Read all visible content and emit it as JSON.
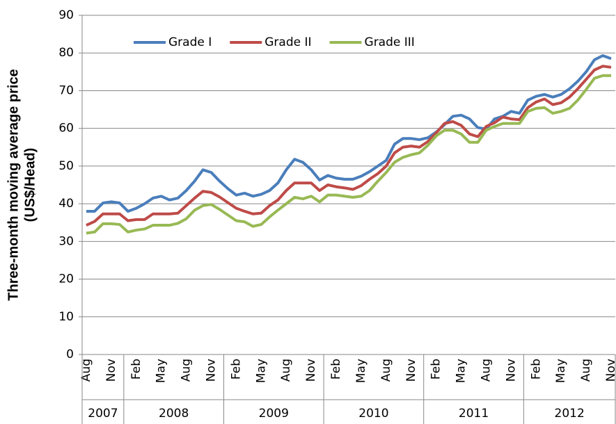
{
  "chart_data": {
    "type": "line",
    "y_label": [
      "Three-month moving average price",
      "(US$/Head)"
    ],
    "categories": [
      "Aug",
      null,
      null,
      "Nov",
      null,
      null,
      "Feb",
      null,
      null,
      "May",
      null,
      null,
      "Aug",
      null,
      null,
      "Nov",
      null,
      null,
      "Feb",
      null,
      null,
      "May",
      null,
      null,
      "Aug",
      null,
      null,
      "Nov",
      null,
      null,
      "Feb",
      null,
      null,
      "May",
      null,
      null,
      "Aug",
      null,
      null,
      "Nov",
      null,
      null,
      "Feb",
      null,
      null,
      "May",
      null,
      null,
      "Aug",
      null,
      null,
      "Nov",
      null,
      null,
      "Feb",
      null,
      null,
      "May",
      null,
      null,
      "Aug",
      null,
      null,
      "Nov"
    ],
    "years": [
      "2007",
      "2008",
      "2009",
      "2010",
      "2011",
      "2012"
    ],
    "series": [
      {
        "name": "Grade I",
        "color": "#4a7ebb",
        "values": [
          38,
          38,
          40.2,
          40.5,
          40.2,
          38,
          38.8,
          40,
          41.5,
          42,
          41,
          41.5,
          43.5,
          46,
          49,
          48.3,
          46,
          44,
          42.3,
          42.8,
          42,
          42.5,
          43.5,
          45.5,
          49,
          51.8,
          51,
          49,
          46.3,
          47.5,
          46.8,
          46.5,
          46.5,
          47.3,
          48.5,
          50,
          51.5,
          55.8,
          57.3,
          57.3,
          57,
          57.5,
          59,
          61,
          63.2,
          63.5,
          62.5,
          60.2,
          59.8,
          62.5,
          63.2,
          64.5,
          64,
          67.5,
          68.5,
          69,
          68.3,
          69,
          70.5,
          72.5,
          75,
          78.2,
          79.3,
          78.5
        ]
      },
      {
        "name": "Grade II",
        "color": "#be4b48",
        "values": [
          34.3,
          35.3,
          37.3,
          37.3,
          37.3,
          35.5,
          35.8,
          35.8,
          37.3,
          37.3,
          37.3,
          37.5,
          39.5,
          41.5,
          43.3,
          43,
          41.8,
          40.3,
          38.8,
          38,
          37.3,
          37.5,
          39.5,
          41,
          43.5,
          45.5,
          45.5,
          45.5,
          43.5,
          45,
          44.5,
          44.2,
          43.8,
          44.8,
          46.5,
          48,
          50,
          53.5,
          55,
          55.3,
          55,
          56.5,
          58.8,
          61.3,
          61.8,
          60.8,
          58.5,
          57.8,
          60.5,
          61.5,
          63,
          62.5,
          62.3,
          65.5,
          67,
          67.8,
          66.3,
          66.8,
          68.3,
          70.5,
          73,
          75.5,
          76.5,
          76.2
        ]
      },
      {
        "name": "Grade III",
        "color": "#98b954",
        "values": [
          32.2,
          32.5,
          34.7,
          34.7,
          34.5,
          32.5,
          33,
          33.3,
          34.3,
          34.3,
          34.3,
          34.8,
          36,
          38.3,
          39.5,
          39.8,
          38.5,
          37,
          35.5,
          35.2,
          34,
          34.5,
          36.5,
          38.3,
          40,
          41.7,
          41.3,
          42,
          40.5,
          42.3,
          42.3,
          42,
          41.7,
          42,
          43.5,
          46,
          48.3,
          51,
          52.3,
          53,
          53.5,
          55.5,
          58,
          59.5,
          59.5,
          58.5,
          56.3,
          56.3,
          59.5,
          60.5,
          61.3,
          61.3,
          61.3,
          64.5,
          65.3,
          65.5,
          64,
          64.5,
          65.3,
          67.5,
          70.3,
          73.3,
          74,
          74
        ]
      }
    ],
    "ylim": [
      0,
      90
    ],
    "yticks": [
      0,
      10,
      20,
      30,
      40,
      50,
      60,
      70,
      80,
      90
    ],
    "grid": true,
    "legend": "top"
  }
}
